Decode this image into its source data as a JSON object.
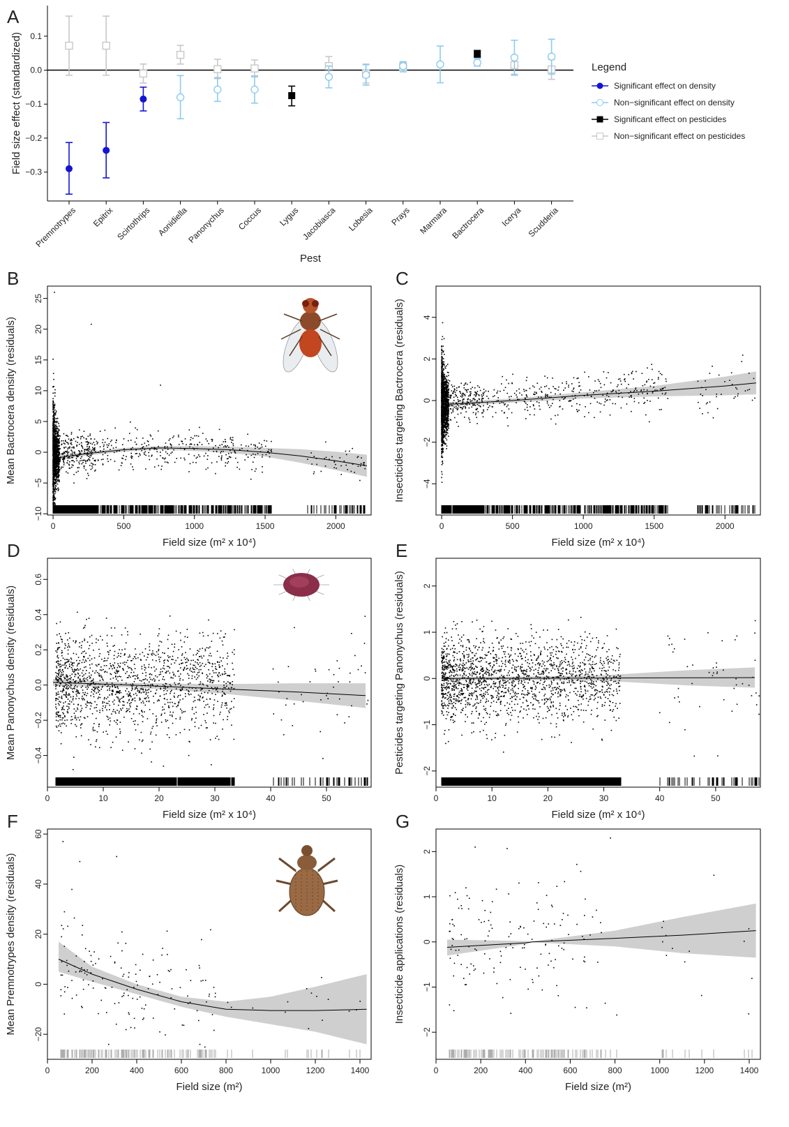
{
  "chart_data": [
    {
      "panel": "A",
      "type": "scatter",
      "xlabel": "Pest",
      "ylabel": "Field size effect (standardized)",
      "categories": [
        "Premnotrypes",
        "Epitrix",
        "Scirtothrips",
        "Aonidiella",
        "Panonychus",
        "Coccus",
        "Lygus",
        "Jacobiasca",
        "Lobesia",
        "Prays",
        "Marmara",
        "Bactrocera",
        "Icerya",
        "Scudderia"
      ],
      "ylim": [
        -0.385,
        0.19
      ],
      "yticks": [
        -0.3,
        -0.2,
        -0.1,
        0.0,
        0.1
      ],
      "ytick_labels": [
        "−0.3",
        "−0.2",
        "−0.1",
        "0.0",
        "0.1"
      ],
      "legend_title": "Legend",
      "legend_position": "right",
      "series": [
        {
          "name": "Significant effect on density",
          "color": "#1414d2",
          "marker": "filled-circle",
          "points": [
            {
              "x": "Premnotrypes",
              "y": -0.29,
              "lo": -0.365,
              "hi": -0.213
            },
            {
              "x": "Epitrix",
              "y": -0.236,
              "lo": -0.317,
              "hi": -0.154
            },
            {
              "x": "Scirtothrips",
              "y": -0.085,
              "lo": -0.12,
              "hi": -0.05
            }
          ]
        },
        {
          "name": "Non−significant effect on density",
          "color": "#8ccbef",
          "marker": "open-circle",
          "points": [
            {
              "x": "Aonidiella",
              "y": -0.08,
              "lo": -0.143,
              "hi": -0.016
            },
            {
              "x": "Panonychus",
              "y": -0.057,
              "lo": -0.092,
              "hi": -0.022
            },
            {
              "x": "Coccus",
              "y": -0.057,
              "lo": -0.097,
              "hi": -0.017
            },
            {
              "x": "Jacobiasca",
              "y": -0.02,
              "lo": -0.052,
              "hi": 0.012
            },
            {
              "x": "Lobesia",
              "y": -0.014,
              "lo": -0.044,
              "hi": 0.016
            },
            {
              "x": "Prays",
              "y": 0.012,
              "lo": -0.005,
              "hi": 0.025
            },
            {
              "x": "Marmara",
              "y": 0.017,
              "lo": -0.037,
              "hi": 0.071
            },
            {
              "x": "Bactrocera",
              "y": 0.022,
              "lo": 0.012,
              "hi": 0.034
            },
            {
              "x": "Icerya",
              "y": 0.037,
              "lo": -0.015,
              "hi": 0.088
            },
            {
              "x": "Scudderia",
              "y": 0.04,
              "lo": -0.012,
              "hi": 0.091
            }
          ]
        },
        {
          "name": "Significant effect on pesticides",
          "color": "#000000",
          "marker": "filled-square",
          "points": [
            {
              "x": "Lygus",
              "y": -0.075,
              "lo": -0.105,
              "hi": -0.047
            },
            {
              "x": "Bactrocera",
              "y": 0.048,
              "lo": 0.038,
              "hi": 0.058
            }
          ]
        },
        {
          "name": "Non−significant effect on pesticides",
          "color": "#c8c8c8",
          "marker": "open-square",
          "points": [
            {
              "x": "Premnotrypes",
              "y": 0.072,
              "lo": -0.015,
              "hi": 0.159
            },
            {
              "x": "Epitrix",
              "y": 0.072,
              "lo": -0.015,
              "hi": 0.159
            },
            {
              "x": "Scirtothrips",
              "y": -0.01,
              "lo": -0.038,
              "hi": 0.018
            },
            {
              "x": "Aonidiella",
              "y": 0.045,
              "lo": 0.018,
              "hi": 0.073
            },
            {
              "x": "Panonychus",
              "y": 0.003,
              "lo": -0.025,
              "hi": 0.032
            },
            {
              "x": "Coccus",
              "y": 0.005,
              "lo": -0.02,
              "hi": 0.03
            },
            {
              "x": "Jacobiasca",
              "y": 0.012,
              "lo": -0.015,
              "hi": 0.04
            },
            {
              "x": "Lobesia",
              "y": -0.01,
              "lo": -0.038,
              "hi": 0.018
            },
            {
              "x": "Prays",
              "y": 0.01,
              "lo": 0.0,
              "hi": 0.022
            },
            {
              "x": "Icerya",
              "y": 0.015,
              "lo": -0.012,
              "hi": 0.042
            },
            {
              "x": "Scudderia",
              "y": 0.002,
              "lo": -0.027,
              "hi": 0.031
            }
          ]
        }
      ]
    },
    {
      "panel": "B",
      "type": "scatter",
      "xlabel": "Field size (m² x 10⁴)",
      "ylabel": "Mean Bactrocera density (residuals)",
      "xlim": [
        -40,
        2250
      ],
      "ylim": [
        -10.2,
        27
      ],
      "xticks": [
        0,
        500,
        1000,
        1500,
        2000
      ],
      "xtick_labels": [
        "0",
        "500",
        "1000",
        "1500",
        "2000"
      ],
      "yticks": [
        -10,
        -5,
        0,
        5,
        10,
        15,
        20,
        25
      ],
      "ytick_labels": [
        "−10",
        "−5",
        "0",
        "5",
        "10",
        "15",
        "20",
        "25"
      ],
      "fit": {
        "x": [
          0,
          250,
          500,
          750,
          1000,
          1250,
          1500,
          1750,
          2000,
          2220
        ],
        "y": [
          -1.0,
          -0.2,
          0.4,
          0.7,
          0.6,
          0.4,
          0.0,
          -0.6,
          -1.4,
          -2.2
        ],
        "lo": [
          -1.4,
          -0.5,
          0.1,
          0.4,
          0.2,
          -0.1,
          -0.7,
          -1.7,
          -2.9,
          -4.0
        ],
        "hi": [
          -0.6,
          0.1,
          0.7,
          1.0,
          1.0,
          0.9,
          0.7,
          0.5,
          0.1,
          -0.4
        ]
      },
      "points_description_note": ""
    },
    {
      "panel": "C",
      "type": "scatter",
      "xlabel": "Field size (m² x 10⁴)",
      "ylabel": "Insecticides targeting Bactrocera (residuals)",
      "xlim": [
        -40,
        2250
      ],
      "ylim": [
        -5.5,
        5.5
      ],
      "xticks": [
        0,
        500,
        1000,
        1500,
        2000
      ],
      "xtick_labels": [
        "0",
        "500",
        "1000",
        "1500",
        "2000"
      ],
      "yticks": [
        -4,
        -2,
        0,
        2,
        4
      ],
      "ytick_labels": [
        "−4",
        "−2",
        "0",
        "2",
        "4"
      ],
      "fit": {
        "x": [
          0,
          500,
          1000,
          1500,
          2000,
          2220
        ],
        "y": [
          -0.2,
          0.0,
          0.25,
          0.45,
          0.7,
          0.85
        ],
        "lo": [
          -0.3,
          -0.1,
          0.1,
          0.2,
          0.25,
          0.3
        ],
        "hi": [
          -0.1,
          0.1,
          0.4,
          0.7,
          1.15,
          1.4
        ]
      }
    },
    {
      "panel": "D",
      "type": "scatter",
      "xlabel": "Field size (m² x 10⁴)",
      "ylabel": "Mean Panonychus density (residuals)",
      "xlim": [
        0,
        58
      ],
      "ylim": [
        -0.58,
        0.72
      ],
      "xticks": [
        0,
        10,
        20,
        30,
        40,
        50
      ],
      "xtick_labels": [
        "0",
        "10",
        "20",
        "30",
        "40",
        "50"
      ],
      "yticks": [
        -0.4,
        -0.2,
        0.0,
        0.2,
        0.4,
        0.6
      ],
      "ytick_labels": [
        "−0.4",
        "−0.2",
        "0.0",
        "0.2",
        "0.4",
        "0.6"
      ],
      "fit": {
        "x": [
          1,
          15,
          30,
          45,
          57
        ],
        "y": [
          0.015,
          0.0,
          -0.02,
          -0.04,
          -0.06
        ],
        "lo": [
          -0.005,
          -0.012,
          -0.045,
          -0.09,
          -0.13
        ],
        "hi": [
          0.035,
          0.012,
          0.005,
          0.01,
          0.01
        ]
      }
    },
    {
      "panel": "E",
      "type": "scatter",
      "xlabel": "Field size (m² x 10⁴)",
      "ylabel": "Pesticides targeting Panonychus (residuals)",
      "xlim": [
        0,
        58
      ],
      "ylim": [
        -2.35,
        2.6
      ],
      "xticks": [
        0,
        10,
        20,
        30,
        40,
        50
      ],
      "xtick_labels": [
        "0",
        "10",
        "20",
        "30",
        "40",
        "50"
      ],
      "yticks": [
        -2,
        -1,
        0,
        1,
        2
      ],
      "ytick_labels": [
        "−2",
        "−1",
        "0",
        "1",
        "2"
      ],
      "fit": {
        "x": [
          1,
          15,
          30,
          45,
          57
        ],
        "y": [
          0.0,
          0.005,
          0.01,
          0.015,
          0.02
        ],
        "lo": [
          -0.04,
          -0.03,
          -0.05,
          -0.15,
          -0.2
        ],
        "hi": [
          0.04,
          0.04,
          0.07,
          0.18,
          0.24
        ]
      }
    },
    {
      "panel": "F",
      "type": "scatter",
      "xlabel": "Field size (m²)",
      "ylabel": "Mean Premnotrypes density (residuals)",
      "xlim": [
        0,
        1450
      ],
      "ylim": [
        -30,
        62
      ],
      "xticks": [
        0,
        200,
        400,
        600,
        800,
        1000,
        1200,
        1400
      ],
      "xtick_labels": [
        "0",
        "200",
        "400",
        "600",
        "800",
        "1000",
        "1200",
        "1400"
      ],
      "yticks": [
        -20,
        0,
        20,
        40,
        60
      ],
      "ytick_labels": [
        "−20",
        "0",
        "20",
        "40",
        "60"
      ],
      "fit": {
        "x": [
          50,
          200,
          400,
          600,
          800,
          1000,
          1200,
          1430
        ],
        "y": [
          10,
          4,
          -2,
          -7,
          -10,
          -10.5,
          -10.5,
          -10
        ],
        "lo": [
          5,
          1,
          -4,
          -9,
          -13,
          -16,
          -19,
          -24
        ],
        "hi": [
          17,
          7,
          0,
          -5,
          -7,
          -5,
          -1,
          4
        ]
      }
    },
    {
      "panel": "G",
      "type": "scatter",
      "xlabel": "Field size (m²)",
      "ylabel": "Insecticide applications (residuals)",
      "xlim": [
        0,
        1450
      ],
      "ylim": [
        -2.6,
        2.5
      ],
      "xticks": [
        0,
        200,
        400,
        600,
        800,
        1000,
        1200,
        1400
      ],
      "xtick_labels": [
        "0",
        "200",
        "400",
        "600",
        "800",
        "1000",
        "1200",
        "1400"
      ],
      "yticks": [
        -2,
        -1,
        0,
        1,
        2
      ],
      "ytick_labels": [
        "−2",
        "−1",
        "0",
        "1",
        "2"
      ],
      "fit": {
        "x": [
          50,
          400,
          430,
          800,
          1100,
          1430
        ],
        "y": [
          -0.12,
          -0.02,
          0.0,
          0.08,
          0.15,
          0.25
        ],
        "lo": [
          -0.3,
          -0.05,
          -0.01,
          -0.1,
          -0.25,
          -0.35
        ],
        "hi": [
          0.05,
          0.02,
          0.01,
          0.25,
          0.55,
          0.85
        ]
      }
    }
  ]
}
